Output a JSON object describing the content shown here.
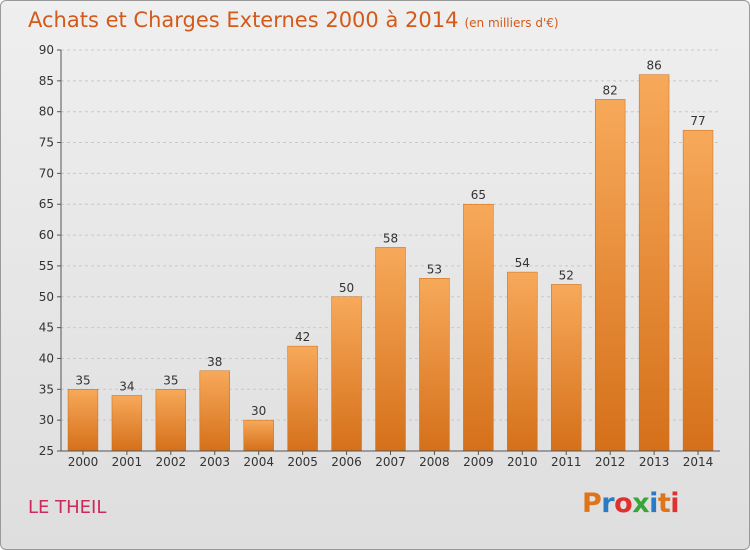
{
  "header": {
    "title": "Achats et Charges Externes 2000 à 2014",
    "unit": "(en milliers d'€)"
  },
  "footer": {
    "location": "LE THEIL",
    "logo_text": "Proxiti",
    "logo_letter_colors": [
      "#e0741a",
      "#2a7bc4",
      "#e03030",
      "#3aa63a",
      "#2a7bc4",
      "#e0741a",
      "#e03030"
    ]
  },
  "colors": {
    "bar_top": "#f7a95a",
    "bar_bottom": "#d5701a",
    "title": "#d35a1a",
    "location": "#cc2a5a",
    "grid": "#c8c8c8"
  },
  "chart_data": {
    "type": "bar",
    "title": "Achats et Charges Externes 2000 à 2014",
    "subtitle": "(en milliers d'€)",
    "xlabel": "",
    "ylabel": "",
    "categories": [
      "2000",
      "2001",
      "2002",
      "2003",
      "2004",
      "2005",
      "2006",
      "2007",
      "2008",
      "2009",
      "2010",
      "2011",
      "2012",
      "2013",
      "2014"
    ],
    "values": [
      35,
      34,
      35,
      38,
      30,
      42,
      50,
      58,
      53,
      65,
      54,
      52,
      82,
      86,
      77
    ],
    "ylim": [
      25,
      90
    ],
    "yticks": [
      25,
      30,
      35,
      40,
      45,
      50,
      55,
      60,
      65,
      70,
      75,
      80,
      85,
      90
    ],
    "grid": true,
    "legend": "none"
  }
}
